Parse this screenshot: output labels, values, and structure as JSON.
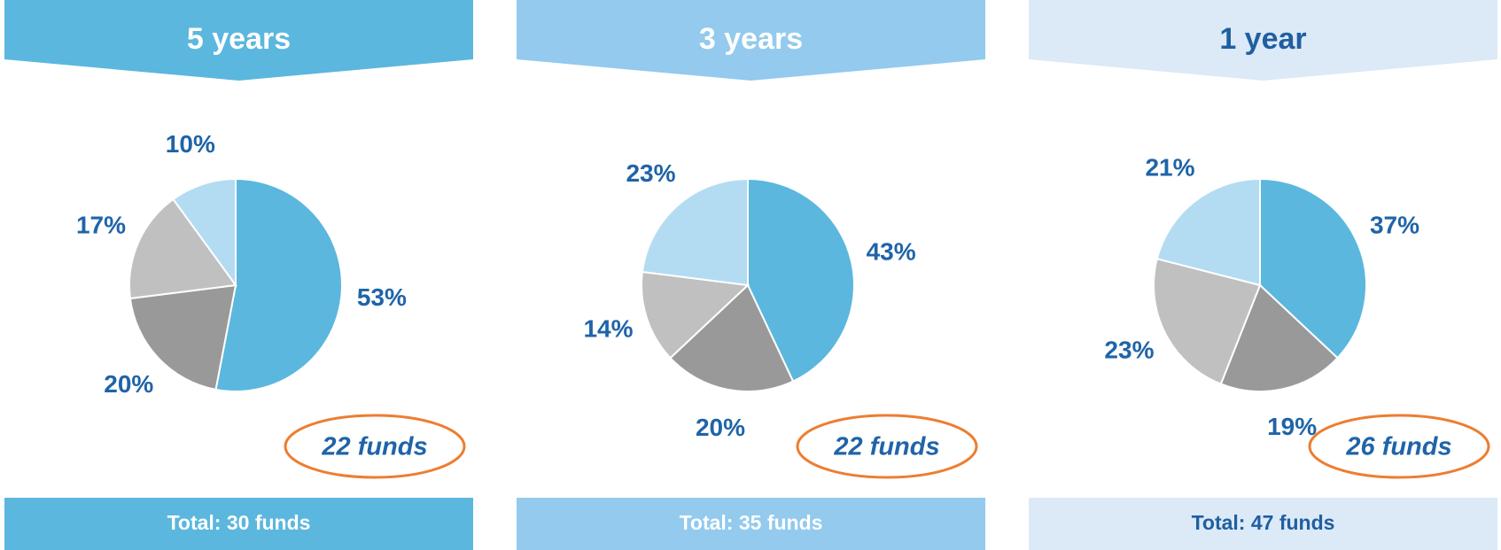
{
  "chart_data": [
    {
      "type": "pie",
      "title": "5 years",
      "values": [
        53,
        20,
        17,
        10
      ],
      "value_labels": [
        "53%",
        "20%",
        "17%",
        "10%"
      ],
      "colors": [
        "#5bb7de",
        "#999999",
        "#c0c0c0",
        "#b3dcf2"
      ],
      "annotation": "22 funds",
      "footer": "Total: 30 funds"
    },
    {
      "type": "pie",
      "title": "3 years",
      "values": [
        43,
        20,
        14,
        23
      ],
      "value_labels": [
        "43%",
        "20%",
        "14%",
        "23%"
      ],
      "colors": [
        "#5bb7de",
        "#999999",
        "#c0c0c0",
        "#b3dcf2"
      ],
      "annotation": "22 funds",
      "footer": "Total: 35 funds"
    },
    {
      "type": "pie",
      "title": "1 year",
      "values": [
        37,
        19,
        23,
        21
      ],
      "value_labels": [
        "37%",
        "19%",
        "23%",
        "21%"
      ],
      "colors": [
        "#5bb7de",
        "#999999",
        "#c0c0c0",
        "#b3dcf2"
      ],
      "annotation": "26 funds",
      "footer": "Total: 47 funds"
    }
  ]
}
